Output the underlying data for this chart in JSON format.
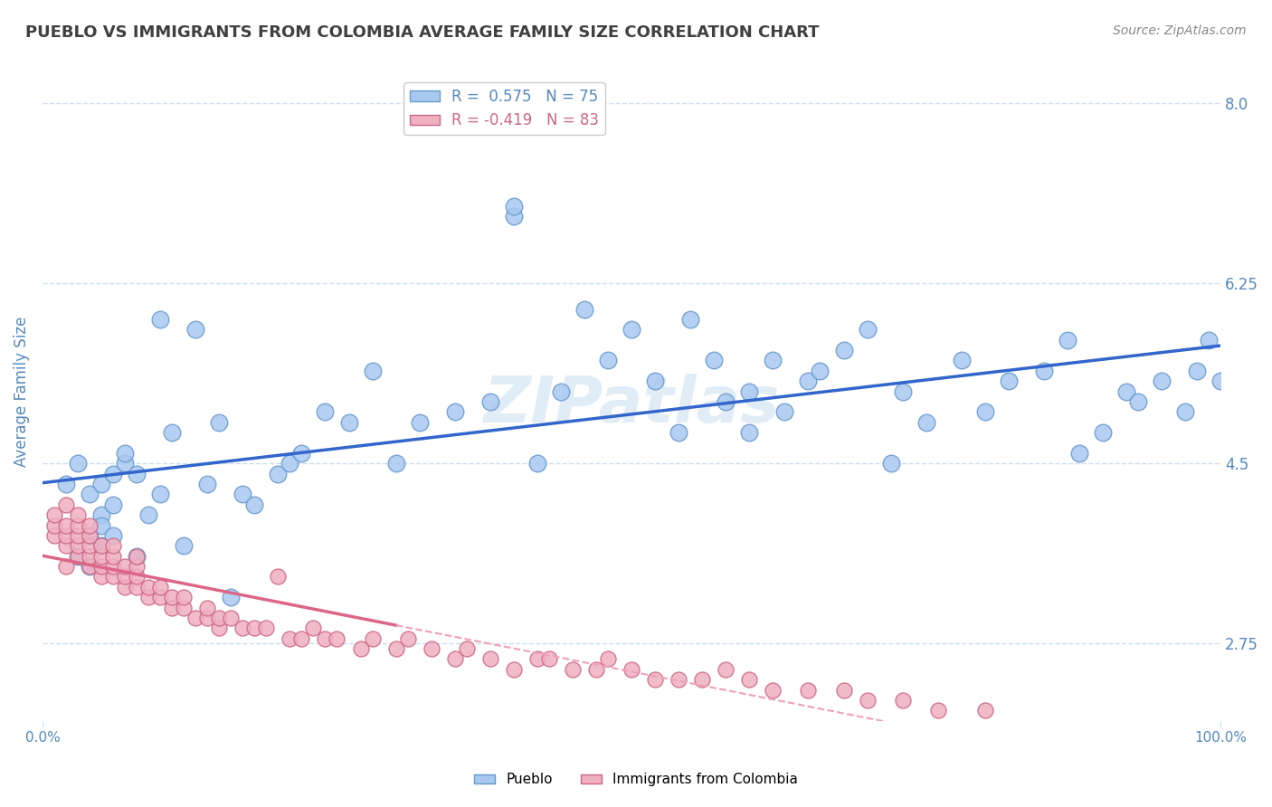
{
  "title": "PUEBLO VS IMMIGRANTS FROM COLOMBIA AVERAGE FAMILY SIZE CORRELATION CHART",
  "source_text": "Source: ZipAtlas.com",
  "xlabel": "",
  "ylabel": "Average Family Size",
  "xlim": [
    0,
    1
  ],
  "ylim": [
    2.0,
    8.4
  ],
  "yticks": [
    2.75,
    4.5,
    6.25,
    8.0
  ],
  "xtick_labels": [
    "0.0%",
    "100.0%"
  ],
  "watermark": "ZIPatlas",
  "legend_items": [
    {
      "label": "R =  0.575   N = 75",
      "color": "#a8c8f0"
    },
    {
      "label": "R = -0.419   N = 83",
      "color": "#f0a0b0"
    }
  ],
  "pueblo_color": "#a8c8f0",
  "pueblo_edge": "#6699cc",
  "colombia_color": "#f0b0c0",
  "colombia_edge": "#cc6688",
  "blue_line_color": "#3366cc",
  "pink_line_color": "#dd6688",
  "pink_dashed_color": "#f0a0b8",
  "title_color": "#404040",
  "axis_color": "#5588bb",
  "grid_color": "#ccddee",
  "bg_color": "#ffffff",
  "pueblo_x": [
    0.02,
    0.03,
    0.03,
    0.04,
    0.04,
    0.04,
    0.05,
    0.05,
    0.05,
    0.05,
    0.06,
    0.06,
    0.06,
    0.07,
    0.07,
    0.08,
    0.08,
    0.09,
    0.1,
    0.1,
    0.11,
    0.12,
    0.13,
    0.14,
    0.15,
    0.16,
    0.17,
    0.18,
    0.2,
    0.21,
    0.22,
    0.24,
    0.26,
    0.28,
    0.3,
    0.32,
    0.35,
    0.38,
    0.4,
    0.4,
    0.42,
    0.44,
    0.46,
    0.48,
    0.5,
    0.52,
    0.54,
    0.55,
    0.57,
    0.58,
    0.6,
    0.6,
    0.62,
    0.63,
    0.65,
    0.66,
    0.68,
    0.7,
    0.72,
    0.73,
    0.75,
    0.78,
    0.8,
    0.82,
    0.85,
    0.87,
    0.88,
    0.9,
    0.92,
    0.93,
    0.95,
    0.97,
    0.98,
    0.99,
    1.0
  ],
  "pueblo_y": [
    4.3,
    3.6,
    4.5,
    3.8,
    4.2,
    3.5,
    4.0,
    4.3,
    3.7,
    3.9,
    4.4,
    4.1,
    3.8,
    4.5,
    4.6,
    3.6,
    4.4,
    4.0,
    4.2,
    5.9,
    4.8,
    3.7,
    5.8,
    4.3,
    4.9,
    3.2,
    4.2,
    4.1,
    4.4,
    4.5,
    4.6,
    5.0,
    4.9,
    5.4,
    4.5,
    4.9,
    5.0,
    5.1,
    6.9,
    7.0,
    4.5,
    5.2,
    6.0,
    5.5,
    5.8,
    5.3,
    4.8,
    5.9,
    5.5,
    5.1,
    4.8,
    5.2,
    5.5,
    5.0,
    5.3,
    5.4,
    5.6,
    5.8,
    4.5,
    5.2,
    4.9,
    5.5,
    5.0,
    5.3,
    5.4,
    5.7,
    4.6,
    4.8,
    5.2,
    5.1,
    5.3,
    5.0,
    5.4,
    5.7,
    5.3
  ],
  "colombia_x": [
    0.01,
    0.01,
    0.01,
    0.02,
    0.02,
    0.02,
    0.02,
    0.02,
    0.03,
    0.03,
    0.03,
    0.03,
    0.03,
    0.04,
    0.04,
    0.04,
    0.04,
    0.04,
    0.05,
    0.05,
    0.05,
    0.05,
    0.06,
    0.06,
    0.06,
    0.06,
    0.07,
    0.07,
    0.07,
    0.08,
    0.08,
    0.08,
    0.08,
    0.09,
    0.09,
    0.1,
    0.1,
    0.11,
    0.11,
    0.12,
    0.12,
    0.13,
    0.14,
    0.14,
    0.15,
    0.15,
    0.16,
    0.17,
    0.18,
    0.19,
    0.2,
    0.21,
    0.22,
    0.23,
    0.24,
    0.25,
    0.27,
    0.28,
    0.3,
    0.31,
    0.33,
    0.35,
    0.36,
    0.38,
    0.4,
    0.42,
    0.43,
    0.45,
    0.47,
    0.48,
    0.5,
    0.52,
    0.54,
    0.56,
    0.58,
    0.6,
    0.62,
    0.65,
    0.68,
    0.7,
    0.73,
    0.76,
    0.8
  ],
  "colombia_y": [
    3.8,
    3.9,
    4.0,
    3.5,
    3.7,
    3.8,
    3.9,
    4.1,
    3.6,
    3.7,
    3.8,
    3.9,
    4.0,
    3.5,
    3.6,
    3.7,
    3.8,
    3.9,
    3.4,
    3.5,
    3.6,
    3.7,
    3.4,
    3.5,
    3.6,
    3.7,
    3.3,
    3.4,
    3.5,
    3.3,
    3.4,
    3.5,
    3.6,
    3.2,
    3.3,
    3.2,
    3.3,
    3.1,
    3.2,
    3.1,
    3.2,
    3.0,
    3.0,
    3.1,
    2.9,
    3.0,
    3.0,
    2.9,
    2.9,
    2.9,
    3.4,
    2.8,
    2.8,
    2.9,
    2.8,
    2.8,
    2.7,
    2.8,
    2.7,
    2.8,
    2.7,
    2.6,
    2.7,
    2.6,
    2.5,
    2.6,
    2.6,
    2.5,
    2.5,
    2.6,
    2.5,
    2.4,
    2.4,
    2.4,
    2.5,
    2.4,
    2.3,
    2.3,
    2.3,
    2.2,
    2.2,
    2.1,
    2.1
  ]
}
